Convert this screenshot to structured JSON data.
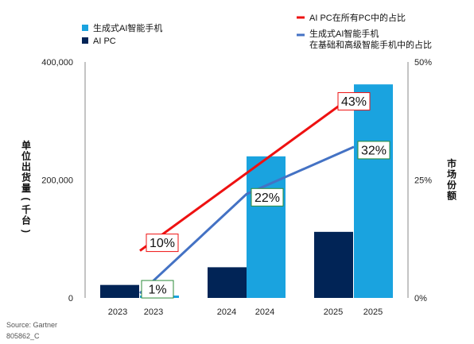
{
  "chart_data": {
    "type": "bar+line",
    "y_left": {
      "label": "单位出货量(千台)",
      "ticks": [
        "0",
        "200,000",
        "400,000"
      ],
      "range": [
        0,
        400000
      ]
    },
    "y_right": {
      "label": "市场份额",
      "ticks": [
        "0%",
        "25%",
        "50%"
      ],
      "range": [
        0,
        50
      ]
    },
    "x_ticks": [
      "2023",
      "2023",
      "2024",
      "2024",
      "2025",
      "2025"
    ],
    "bar_series": [
      {
        "name": "生成式AI智能手机",
        "color": "#1aa3df",
        "values": [
          {
            "year": "2023",
            "value": 4000
          },
          {
            "year": "2024",
            "value": 240000
          },
          {
            "year": "2025",
            "value": 362000
          }
        ]
      },
      {
        "name": "AI PC",
        "color": "#012456",
        "values": [
          {
            "year": "2023",
            "value": 22000
          },
          {
            "year": "2024",
            "value": 52000
          },
          {
            "year": "2025",
            "value": 112000
          }
        ]
      }
    ],
    "line_series": [
      {
        "name": "AI PC在所有PC中的占比",
        "color": "#ee1111",
        "points": [
          {
            "year": "2023",
            "value": 10,
            "label": "10%"
          },
          {
            "year": "2025",
            "value": 43,
            "label": "43%"
          }
        ]
      },
      {
        "name": "生成式AI智能手机\n在基础和高级智能手机中的占比",
        "color": "#4472c4",
        "points": [
          {
            "year": "2023",
            "value": 1,
            "label": "1%"
          },
          {
            "year": "2024",
            "value": 22,
            "label": "22%"
          },
          {
            "year": "2025",
            "value": 32,
            "label": "32%"
          }
        ]
      }
    ]
  },
  "footer": {
    "source": "Source: Gartner",
    "code": "805862_C"
  }
}
